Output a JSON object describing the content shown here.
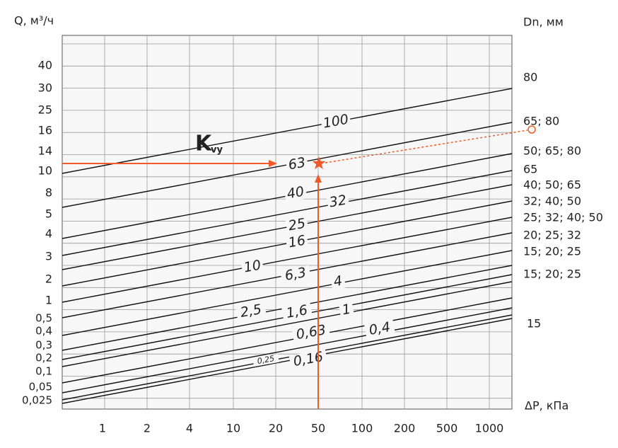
{
  "header": {
    "y_axis": "Q, м³/ч",
    "right_axis": "Dn, мм",
    "x_axis": "ΔP, кПа",
    "kvy": {
      "main": "K",
      "sub": "vy"
    }
  },
  "y_labels": [
    "40",
    "30",
    "25",
    "16",
    "14",
    "10",
    "8",
    "5",
    "4",
    "3",
    "2",
    "1",
    "0,5",
    "0,4",
    "0,3",
    "0,2",
    "0,1",
    "0,05",
    "0,025"
  ],
  "x_labels": [
    "1",
    "2",
    "4",
    "10",
    "20",
    "50",
    "100",
    "200",
    "500",
    "1000"
  ],
  "lines": [
    "100",
    "63",
    "40",
    "32",
    "25",
    "16",
    "10",
    "6,3",
    "4",
    "2,5",
    "1,6",
    "1",
    "0,63",
    "0,4",
    "0,25",
    "0,16"
  ],
  "dn_labels": [
    "80",
    "65; 80",
    "50; 65; 80",
    "65",
    "40; 50; 65",
    "32; 40; 50",
    "25; 32; 40; 50",
    "20; 25; 32",
    "15; 20; 25",
    "15; 20; 25",
    "15"
  ]
}
